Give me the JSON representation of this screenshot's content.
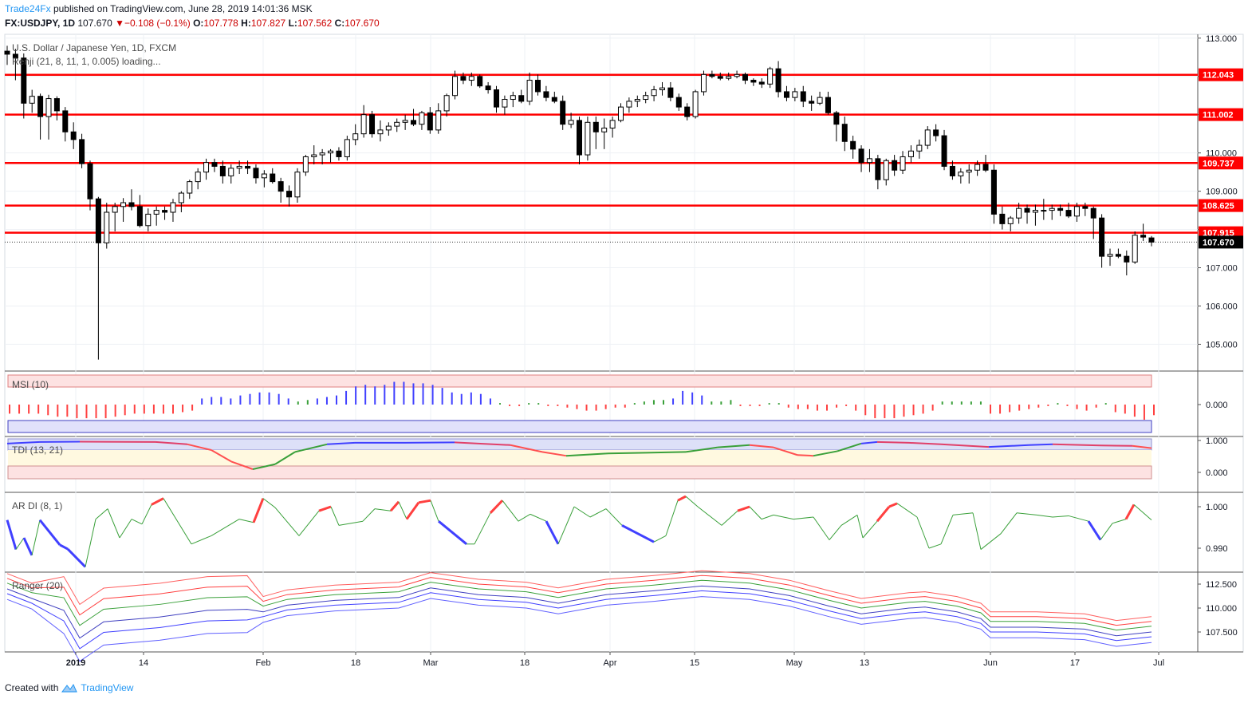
{
  "header": {
    "brand": "Trade24Fx",
    "published_text": "published on TradingView.com, June 28, 2019 14:01:36 MSK",
    "symbol": "FX:USDJPY, 1D",
    "last": "107.670",
    "change": "−0.108 (−0.1%)",
    "o_label": "O:",
    "o_value": "107.778",
    "h_label": "H:",
    "h_value": "107.827",
    "l_label": "L:",
    "l_value": "107.562",
    "c_label": "C:",
    "c_value": "107.670"
  },
  "legends": {
    "main": "U.S. Dollar / Japanese Yen, 1D, FXCM",
    "renji": "Renji (21, 8, 11, 1, 0.005) loading...",
    "msi": "MSI (10)",
    "tdi": "TDI (13, 21)",
    "ardi": "AR DI (8, 1)",
    "ranger": "Ranger (20)"
  },
  "footer": {
    "created_with": "Created with",
    "tradingview": "TradingView"
  },
  "colors": {
    "level_line": "#ff0000",
    "up": "#ffffff",
    "down": "#000000",
    "grid": "#e9edf3"
  },
  "chart_data": {
    "type": "candlestick",
    "title": "U.S. Dollar / Japanese Yen, 1D, FXCM",
    "price_axis_ticks": [
      "113.000",
      "112.000",
      "111.000",
      "110.000",
      "109.000",
      "108.000",
      "107.000",
      "106.000",
      "105.000"
    ],
    "ylim": [
      104.3,
      113.1
    ],
    "time_axis_ticks": [
      "2019",
      "14",
      "Feb",
      "18",
      "Mar",
      "18",
      "Apr",
      "15",
      "May",
      "13",
      "Jun",
      "17",
      "Jul"
    ],
    "horizontal_levels": [
      {
        "label": "112.043",
        "value": 112.043
      },
      {
        "label": "111.002",
        "value": 111.002
      },
      {
        "label": "109.737",
        "value": 109.737
      },
      {
        "label": "108.625",
        "value": 108.625
      },
      {
        "label": "107.915",
        "value": 107.915
      }
    ],
    "last_price": {
      "label": "107.670",
      "value": 107.67
    },
    "ohlc": [
      [
        112.66,
        112.8,
        112.3,
        112.58
      ],
      [
        112.58,
        112.72,
        111.9,
        112.48
      ],
      [
        112.48,
        112.6,
        110.9,
        111.3
      ],
      [
        111.3,
        111.65,
        111.05,
        111.48
      ],
      [
        111.48,
        111.55,
        110.35,
        110.95
      ],
      [
        110.95,
        111.52,
        110.35,
        111.42
      ],
      [
        111.42,
        111.48,
        110.85,
        111.1
      ],
      [
        111.1,
        111.2,
        110.3,
        110.55
      ],
      [
        110.55,
        110.8,
        110.1,
        110.35
      ],
      [
        110.35,
        110.5,
        109.6,
        109.72
      ],
      [
        109.72,
        109.8,
        108.5,
        108.8
      ],
      [
        108.8,
        108.85,
        104.6,
        107.65
      ],
      [
        107.65,
        108.7,
        107.5,
        108.45
      ],
      [
        108.45,
        108.7,
        107.95,
        108.6
      ],
      [
        108.6,
        108.82,
        108.2,
        108.7
      ],
      [
        108.7,
        109.05,
        108.5,
        108.6
      ],
      [
        108.6,
        108.9,
        108.05,
        108.1
      ],
      [
        108.1,
        108.55,
        107.95,
        108.4
      ],
      [
        108.4,
        108.6,
        108.1,
        108.5
      ],
      [
        108.5,
        108.6,
        108.25,
        108.45
      ],
      [
        108.45,
        108.8,
        108.2,
        108.7
      ],
      [
        108.7,
        109.0,
        108.45,
        108.95
      ],
      [
        108.95,
        109.3,
        108.8,
        109.25
      ],
      [
        109.25,
        109.6,
        109.05,
        109.5
      ],
      [
        109.5,
        109.85,
        109.3,
        109.75
      ],
      [
        109.75,
        109.85,
        109.5,
        109.65
      ],
      [
        109.65,
        109.8,
        109.2,
        109.4
      ],
      [
        109.4,
        109.7,
        109.2,
        109.6
      ],
      [
        109.6,
        109.8,
        109.45,
        109.65
      ],
      [
        109.65,
        109.8,
        109.45,
        109.6
      ],
      [
        109.6,
        109.7,
        109.2,
        109.35
      ],
      [
        109.35,
        109.55,
        109.1,
        109.45
      ],
      [
        109.45,
        109.6,
        109.2,
        109.25
      ],
      [
        109.25,
        109.35,
        108.7,
        109.0
      ],
      [
        109.0,
        109.15,
        108.6,
        108.85
      ],
      [
        108.85,
        109.6,
        108.7,
        109.5
      ],
      [
        109.5,
        109.95,
        109.4,
        109.9
      ],
      [
        109.9,
        110.2,
        109.7,
        109.95
      ],
      [
        109.95,
        110.1,
        109.7,
        110.0
      ],
      [
        110.0,
        110.1,
        109.75,
        110.05
      ],
      [
        110.05,
        110.15,
        109.8,
        109.9
      ],
      [
        109.9,
        110.45,
        109.8,
        110.35
      ],
      [
        110.35,
        110.75,
        110.2,
        110.5
      ],
      [
        110.5,
        111.25,
        110.4,
        111.0
      ],
      [
        111.0,
        111.1,
        110.4,
        110.5
      ],
      [
        110.5,
        110.85,
        110.3,
        110.6
      ],
      [
        110.6,
        110.8,
        110.45,
        110.7
      ],
      [
        110.7,
        110.9,
        110.55,
        110.8
      ],
      [
        110.8,
        111.0,
        110.6,
        110.85
      ],
      [
        110.85,
        111.15,
        110.7,
        110.75
      ],
      [
        110.75,
        111.1,
        110.6,
        111.05
      ],
      [
        111.05,
        111.2,
        110.5,
        110.6
      ],
      [
        110.6,
        111.3,
        110.5,
        111.1
      ],
      [
        111.1,
        111.55,
        110.95,
        111.5
      ],
      [
        111.5,
        112.15,
        111.4,
        112.0
      ],
      [
        112.0,
        112.1,
        111.8,
        111.9
      ],
      [
        111.9,
        112.1,
        111.75,
        112.0
      ],
      [
        112.0,
        112.05,
        111.7,
        111.75
      ],
      [
        111.75,
        111.85,
        111.55,
        111.65
      ],
      [
        111.65,
        111.75,
        111.05,
        111.2
      ],
      [
        111.2,
        111.5,
        111.0,
        111.4
      ],
      [
        111.4,
        111.6,
        111.2,
        111.5
      ],
      [
        111.5,
        111.65,
        111.3,
        111.35
      ],
      [
        111.35,
        112.1,
        111.25,
        111.9
      ],
      [
        111.9,
        112.05,
        111.5,
        111.6
      ],
      [
        111.6,
        111.75,
        111.35,
        111.45
      ],
      [
        111.45,
        111.6,
        111.3,
        111.35
      ],
      [
        111.35,
        111.5,
        110.6,
        110.75
      ],
      [
        110.75,
        111.05,
        110.65,
        110.85
      ],
      [
        110.85,
        110.95,
        109.7,
        109.95
      ],
      [
        109.95,
        110.95,
        109.8,
        110.8
      ],
      [
        110.8,
        110.95,
        110.1,
        110.55
      ],
      [
        110.55,
        110.9,
        110.1,
        110.65
      ],
      [
        110.65,
        110.95,
        110.4,
        110.85
      ],
      [
        110.85,
        111.3,
        110.8,
        111.2
      ],
      [
        111.2,
        111.45,
        111.05,
        111.35
      ],
      [
        111.35,
        111.5,
        111.2,
        111.4
      ],
      [
        111.4,
        111.6,
        111.3,
        111.5
      ],
      [
        111.5,
        111.75,
        111.35,
        111.65
      ],
      [
        111.65,
        111.85,
        111.5,
        111.7
      ],
      [
        111.7,
        111.85,
        111.35,
        111.45
      ],
      [
        111.45,
        111.55,
        111.1,
        111.2
      ],
      [
        111.2,
        111.3,
        110.85,
        110.95
      ],
      [
        110.95,
        111.65,
        110.9,
        111.6
      ],
      [
        111.6,
        112.15,
        111.5,
        112.05
      ],
      [
        112.05,
        112.15,
        111.95,
        112.0
      ],
      [
        112.0,
        112.1,
        111.9,
        111.95
      ],
      [
        111.95,
        112.1,
        111.9,
        112.0
      ],
      [
        112.0,
        112.15,
        111.95,
        112.05
      ],
      [
        112.05,
        112.1,
        111.8,
        111.9
      ],
      [
        111.9,
        111.95,
        111.75,
        111.85
      ],
      [
        111.85,
        111.95,
        111.7,
        111.8
      ],
      [
        111.8,
        112.25,
        111.7,
        112.2
      ],
      [
        112.2,
        112.4,
        111.45,
        111.6
      ],
      [
        111.6,
        111.75,
        111.35,
        111.45
      ],
      [
        111.45,
        111.7,
        111.35,
        111.6
      ],
      [
        111.6,
        111.75,
        111.2,
        111.35
      ],
      [
        111.35,
        111.5,
        111.1,
        111.3
      ],
      [
        111.3,
        111.6,
        111.25,
        111.45
      ],
      [
        111.45,
        111.6,
        111.0,
        111.05
      ],
      [
        111.05,
        111.1,
        110.3,
        110.75
      ],
      [
        110.75,
        110.95,
        110.05,
        110.3
      ],
      [
        110.3,
        110.45,
        109.85,
        110.1
      ],
      [
        110.1,
        110.2,
        109.5,
        109.75
      ],
      [
        109.75,
        110.1,
        109.5,
        109.85
      ],
      [
        109.85,
        109.95,
        109.05,
        109.3
      ],
      [
        109.3,
        109.85,
        109.15,
        109.8
      ],
      [
        109.8,
        109.95,
        109.4,
        109.55
      ],
      [
        109.55,
        110.05,
        109.45,
        109.9
      ],
      [
        109.9,
        110.2,
        109.75,
        110.05
      ],
      [
        110.05,
        110.35,
        109.85,
        110.2
      ],
      [
        110.2,
        110.7,
        110.1,
        110.6
      ],
      [
        110.6,
        110.75,
        110.3,
        110.45
      ],
      [
        110.45,
        110.6,
        109.55,
        109.65
      ],
      [
        109.65,
        109.8,
        109.3,
        109.4
      ],
      [
        109.4,
        109.6,
        109.2,
        109.5
      ],
      [
        109.5,
        109.7,
        109.2,
        109.55
      ],
      [
        109.55,
        109.8,
        109.4,
        109.7
      ],
      [
        109.7,
        109.95,
        109.5,
        109.55
      ],
      [
        109.55,
        109.7,
        108.15,
        108.4
      ],
      [
        108.4,
        108.6,
        108.0,
        108.15
      ],
      [
        108.15,
        108.35,
        107.95,
        108.3
      ],
      [
        108.3,
        108.7,
        108.15,
        108.55
      ],
      [
        108.55,
        108.65,
        108.15,
        108.45
      ],
      [
        108.45,
        108.65,
        108.1,
        108.5
      ],
      [
        108.5,
        108.8,
        108.25,
        108.5
      ],
      [
        108.5,
        108.65,
        108.25,
        108.55
      ],
      [
        108.55,
        108.65,
        108.35,
        108.5
      ],
      [
        108.5,
        108.7,
        108.3,
        108.35
      ],
      [
        108.35,
        108.7,
        108.2,
        108.6
      ],
      [
        108.6,
        108.7,
        108.35,
        108.55
      ],
      [
        108.55,
        108.6,
        107.75,
        108.3
      ],
      [
        108.3,
        108.4,
        107.0,
        107.3
      ],
      [
        107.3,
        107.5,
        107.05,
        107.35
      ],
      [
        107.35,
        107.5,
        107.25,
        107.3
      ],
      [
        107.3,
        107.45,
        106.8,
        107.15
      ],
      [
        107.15,
        107.95,
        107.1,
        107.85
      ],
      [
        107.85,
        108.15,
        107.7,
        107.8
      ],
      [
        107.78,
        107.83,
        107.56,
        107.67
      ]
    ],
    "msi": {
      "label": "MSI (10)",
      "ticks": [
        "0.000"
      ],
      "values": [
        -0.3,
        -0.3,
        -0.3,
        -0.3,
        -0.35,
        -0.4,
        -0.4,
        -0.45,
        -0.45,
        -0.45,
        -0.45,
        -0.4,
        -0.35,
        -0.3,
        -0.3,
        -0.3,
        -0.3,
        -0.3,
        -0.25,
        -0.2,
        0.2,
        0.25,
        0.25,
        0.2,
        0.3,
        0.35,
        0.4,
        0.4,
        0.35,
        0.2,
        0.1,
        0.15,
        0.2,
        0.25,
        0.3,
        0.45,
        0.6,
        0.65,
        0.6,
        0.65,
        0.75,
        0.75,
        0.7,
        0.7,
        0.65,
        0.55,
        0.4,
        0.35,
        0.4,
        0.35,
        0.2,
        0.05,
        -0.05,
        -0.05,
        0.05,
        0.05,
        -0.05,
        -0.05,
        -0.1,
        -0.15,
        -0.2,
        -0.2,
        -0.15,
        -0.1,
        -0.1,
        0.05,
        0.1,
        0.15,
        0.15,
        0.2,
        0.45,
        0.4,
        0.3,
        0.1,
        0.1,
        0.15,
        -0.05,
        -0.05,
        -0.05,
        0.05,
        0.05,
        -0.1,
        -0.15,
        -0.15,
        -0.2,
        -0.2,
        -0.1,
        -0.05,
        -0.2,
        -0.35,
        -0.45,
        -0.45,
        -0.45,
        -0.4,
        -0.35,
        -0.3,
        -0.2,
        0.1,
        0.1,
        0.1,
        0.1,
        0.1,
        -0.3,
        -0.3,
        -0.25,
        -0.2,
        -0.15,
        -0.1,
        -0.05,
        0.05,
        -0.05,
        -0.15,
        -0.2,
        -0.1,
        0.05,
        -0.25,
        -0.3,
        -0.4,
        -0.5,
        -0.35
      ]
    },
    "tdi": {
      "label": "TDI (13, 21)",
      "ticks": [
        "1.000",
        "0.000"
      ]
    },
    "ardi": {
      "label": "AR DI (8, 1)",
      "ticks": [
        "1.000",
        "0.990"
      ]
    },
    "ranger": {
      "label": "Ranger (20)",
      "ticks": [
        "112.500",
        "110.000",
        "107.500"
      ]
    }
  }
}
